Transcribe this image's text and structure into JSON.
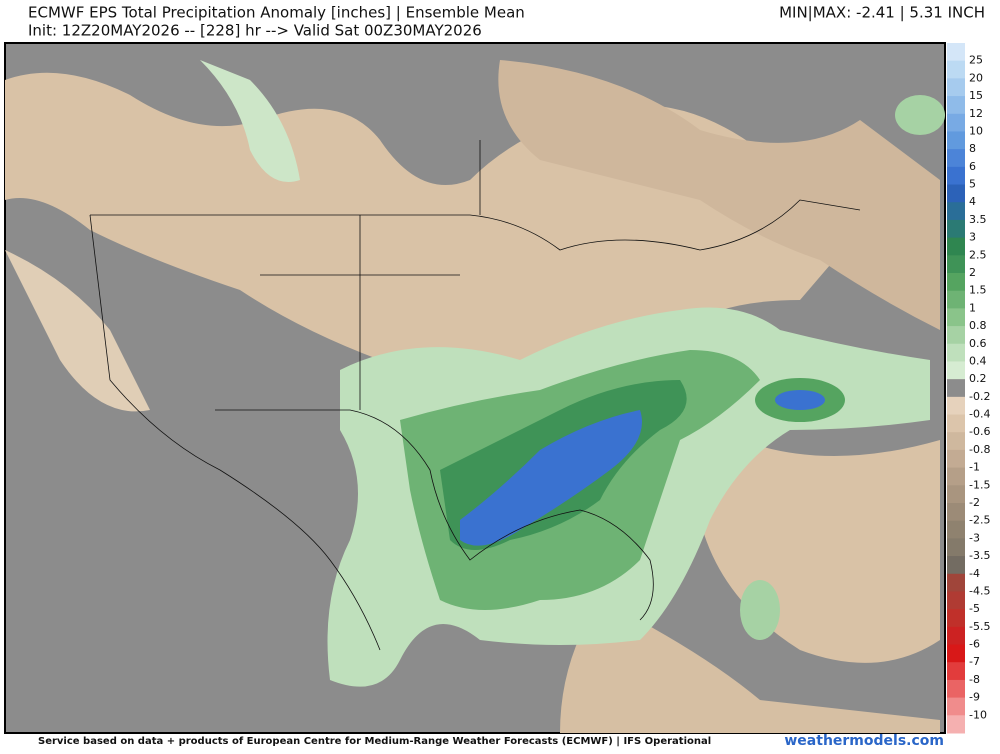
{
  "header": {
    "title": "ECMWF EPS Total Precipitation Anomaly [inches] | Ensemble Mean",
    "init": "Init: 12Z20MAY2026 -- [228] hr --> Valid Sat 00Z30MAY2026",
    "minmax": "MIN|MAX: -2.41 | 5.31 INCH"
  },
  "colorbar": {
    "labels": [
      "25",
      "20",
      "15",
      "12",
      "10",
      "8",
      "6",
      "5",
      "4",
      "3.5",
      "3",
      "2.5",
      "2",
      "1.5",
      "1",
      "0.8",
      "0.6",
      "0.4",
      "0.2",
      "-0.2",
      "-0.4",
      "-0.6",
      "-0.8",
      "-1",
      "-1.5",
      "-2",
      "-2.5",
      "-3",
      "-3.5",
      "-4",
      "-4.5",
      "-5",
      "-5.5",
      "-6",
      "-7",
      "-8",
      "-9",
      "-10"
    ],
    "colors": [
      "#d4e6f8",
      "#bcdaf3",
      "#a6cbee",
      "#8fbbe9",
      "#78aae4",
      "#619ade",
      "#4c84d8",
      "#3a72d0",
      "#2c62b8",
      "#2a6e98",
      "#2b7a74",
      "#2f8650",
      "#3f9357",
      "#55a460",
      "#6eb374",
      "#8ac48a",
      "#a6d2a4",
      "#bfe0bc",
      "#d6ecd2",
      "#8c8c8c",
      "#e6d2bc",
      "#dcc5ab",
      "#cfb89e",
      "#c3ab93",
      "#b59f88",
      "#a9957f",
      "#9c8b77",
      "#8f826f",
      "#847a6a",
      "#736c62",
      "#a0453a",
      "#b03b33",
      "#c0302a",
      "#cc2222",
      "#d81818",
      "#e23c3c",
      "#ea6464",
      "#f08c8c",
      "#f5b0b0"
    ]
  },
  "footer": {
    "credit": "Service based on data + products of European Centre for Medium-Range Weather Forecasts (ECMWF) | IFS Operational",
    "site": "weathermodels.com"
  }
}
